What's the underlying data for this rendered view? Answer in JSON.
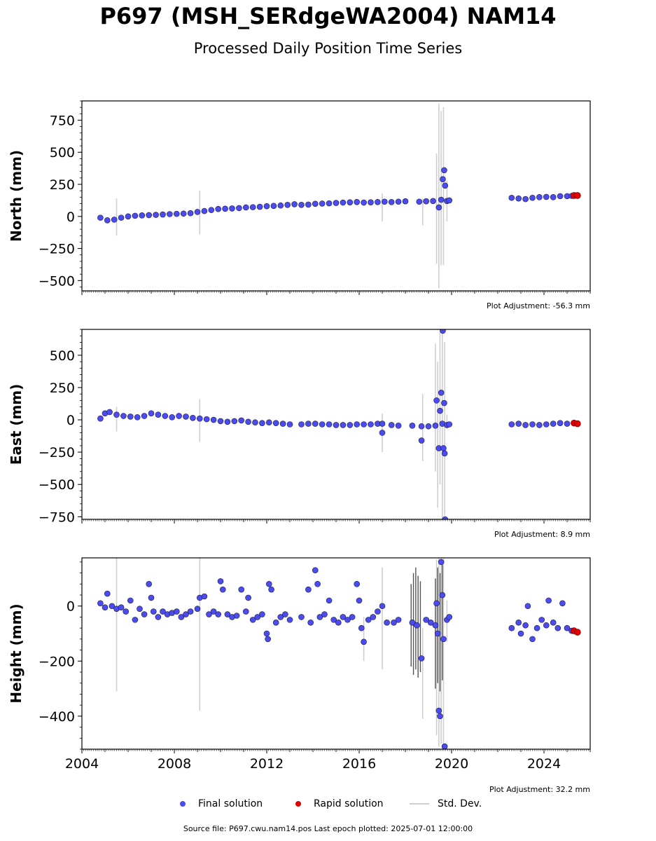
{
  "title": "P697 (MSH_SERdgeWA2004) NAM14",
  "subtitle": "Processed Daily Position Time Series",
  "legend": {
    "final": "Final solution",
    "rapid": "Rapid solution",
    "std": "Std. Dev."
  },
  "footer": "Source file: P697.cwu.nam14.pos  Last epoch plotted: 2025-07-01 12:00:00",
  "colors": {
    "final_fill": "#4b4bf0",
    "final_edge": "#1a1a40",
    "rapid_fill": "#e00000",
    "stddev": "#cfcfcf",
    "stddev_dark": "#555555"
  },
  "chart_data": [
    {
      "type": "scatter",
      "ylabel": "North (mm)",
      "adjustment": "Plot Adjustment: -56.3 mm",
      "xlim": [
        2004.0,
        2026.0
      ],
      "ylim": [
        -580,
        900
      ],
      "yticks": [
        -500,
        -250,
        0,
        250,
        500,
        750
      ],
      "ytick_labels": [
        "−500",
        "−250",
        "0",
        "250",
        "500",
        "750"
      ],
      "xticks": [
        2004,
        2008,
        2012,
        2016,
        2020,
        2024
      ],
      "xtick_labels": [],
      "final": [
        [
          2004.8,
          -10
        ],
        [
          2005.1,
          -30
        ],
        [
          2005.4,
          -25
        ],
        [
          2005.7,
          -10
        ],
        [
          2006.0,
          0
        ],
        [
          2006.3,
          5
        ],
        [
          2006.6,
          8
        ],
        [
          2006.9,
          10
        ],
        [
          2007.2,
          12
        ],
        [
          2007.5,
          15
        ],
        [
          2007.8,
          18
        ],
        [
          2008.1,
          20
        ],
        [
          2008.4,
          22
        ],
        [
          2008.7,
          25
        ],
        [
          2009.0,
          35
        ],
        [
          2009.3,
          42
        ],
        [
          2009.6,
          50
        ],
        [
          2009.9,
          58
        ],
        [
          2010.2,
          60
        ],
        [
          2010.5,
          62
        ],
        [
          2010.8,
          65
        ],
        [
          2011.1,
          70
        ],
        [
          2011.4,
          72
        ],
        [
          2011.7,
          75
        ],
        [
          2012.0,
          80
        ],
        [
          2012.3,
          82
        ],
        [
          2012.6,
          85
        ],
        [
          2012.9,
          90
        ],
        [
          2013.2,
          95
        ],
        [
          2013.5,
          90
        ],
        [
          2013.8,
          92
        ],
        [
          2014.1,
          98
        ],
        [
          2014.4,
          100
        ],
        [
          2014.7,
          102
        ],
        [
          2015.0,
          105
        ],
        [
          2015.3,
          108
        ],
        [
          2015.6,
          110
        ],
        [
          2015.9,
          112
        ],
        [
          2016.2,
          108
        ],
        [
          2016.5,
          110
        ],
        [
          2016.8,
          112
        ],
        [
          2017.1,
          115
        ],
        [
          2017.4,
          112
        ],
        [
          2017.7,
          115
        ],
        [
          2018.0,
          118
        ],
        [
          2018.6,
          115
        ],
        [
          2018.9,
          118
        ],
        [
          2019.2,
          120
        ],
        [
          2019.45,
          70
        ],
        [
          2019.55,
          130
        ],
        [
          2019.62,
          290
        ],
        [
          2019.68,
          360
        ],
        [
          2019.72,
          240
        ],
        [
          2019.8,
          120
        ],
        [
          2019.9,
          125
        ],
        [
          2022.6,
          145
        ],
        [
          2022.9,
          140
        ],
        [
          2023.2,
          135
        ],
        [
          2023.5,
          145
        ],
        [
          2023.8,
          150
        ],
        [
          2024.1,
          152
        ],
        [
          2024.4,
          150
        ],
        [
          2024.7,
          158
        ],
        [
          2025.0,
          158
        ],
        [
          2025.2,
          160
        ]
      ],
      "rapid": [
        [
          2025.3,
          163
        ],
        [
          2025.45,
          163
        ]
      ],
      "stddev": [
        [
          2005.5,
          -150,
          140
        ],
        [
          2009.1,
          -140,
          200
        ],
        [
          2017.0,
          -40,
          180
        ],
        [
          2018.75,
          -70,
          140
        ],
        [
          2019.35,
          -370,
          490
        ],
        [
          2019.45,
          -560,
          880
        ],
        [
          2019.55,
          -380,
          820
        ],
        [
          2019.65,
          -380,
          850
        ],
        [
          2019.8,
          -40,
          280
        ]
      ],
      "stddev_dark": []
    },
    {
      "type": "scatter",
      "ylabel": "East (mm)",
      "adjustment": "Plot Adjustment: 8.9 mm",
      "xlim": [
        2004.0,
        2026.0
      ],
      "ylim": [
        -770,
        700
      ],
      "yticks": [
        -750,
        -500,
        -250,
        0,
        250,
        500
      ],
      "ytick_labels": [
        "−750",
        "−500",
        "−250",
        "0",
        "250",
        "500"
      ],
      "xticks": [
        2004,
        2008,
        2012,
        2016,
        2020,
        2024
      ],
      "xtick_labels": [],
      "final": [
        [
          2004.8,
          10
        ],
        [
          2005.0,
          50
        ],
        [
          2005.2,
          60
        ],
        [
          2005.5,
          40
        ],
        [
          2005.8,
          30
        ],
        [
          2006.1,
          25
        ],
        [
          2006.4,
          20
        ],
        [
          2006.7,
          30
        ],
        [
          2007.0,
          50
        ],
        [
          2007.3,
          40
        ],
        [
          2007.6,
          30
        ],
        [
          2007.9,
          20
        ],
        [
          2008.2,
          30
        ],
        [
          2008.5,
          25
        ],
        [
          2008.8,
          15
        ],
        [
          2009.1,
          10
        ],
        [
          2009.4,
          5
        ],
        [
          2009.7,
          0
        ],
        [
          2010.0,
          -10
        ],
        [
          2010.3,
          -15
        ],
        [
          2010.6,
          -10
        ],
        [
          2010.9,
          -5
        ],
        [
          2011.2,
          -15
        ],
        [
          2011.5,
          -20
        ],
        [
          2011.8,
          -25
        ],
        [
          2012.1,
          -20
        ],
        [
          2012.4,
          -25
        ],
        [
          2012.7,
          -30
        ],
        [
          2013.0,
          -35
        ],
        [
          2013.5,
          -35
        ],
        [
          2013.8,
          -30
        ],
        [
          2014.1,
          -30
        ],
        [
          2014.4,
          -35
        ],
        [
          2014.7,
          -35
        ],
        [
          2015.0,
          -40
        ],
        [
          2015.3,
          -40
        ],
        [
          2015.6,
          -40
        ],
        [
          2015.9,
          -35
        ],
        [
          2016.2,
          -35
        ],
        [
          2016.5,
          -35
        ],
        [
          2016.8,
          -30
        ],
        [
          2017.0,
          -30
        ],
        [
          2017.0,
          -100
        ],
        [
          2017.4,
          -40
        ],
        [
          2017.7,
          -45
        ],
        [
          2018.3,
          -45
        ],
        [
          2018.7,
          -50
        ],
        [
          2018.7,
          -160
        ],
        [
          2019.0,
          -50
        ],
        [
          2019.3,
          -45
        ],
        [
          2019.35,
          150
        ],
        [
          2019.45,
          -220
        ],
        [
          2019.5,
          70
        ],
        [
          2019.55,
          210
        ],
        [
          2019.6,
          -30
        ],
        [
          2019.62,
          690
        ],
        [
          2019.65,
          -220
        ],
        [
          2019.68,
          130
        ],
        [
          2019.7,
          -260
        ],
        [
          2019.72,
          -770
        ],
        [
          2019.8,
          -40
        ],
        [
          2019.9,
          -35
        ],
        [
          2022.6,
          -35
        ],
        [
          2022.9,
          -30
        ],
        [
          2023.2,
          -40
        ],
        [
          2023.5,
          -35
        ],
        [
          2023.8,
          -40
        ],
        [
          2024.1,
          -35
        ],
        [
          2024.4,
          -30
        ],
        [
          2024.7,
          -25
        ],
        [
          2025.0,
          -30
        ]
      ],
      "rapid": [
        [
          2025.3,
          -25
        ],
        [
          2025.45,
          -30
        ]
      ],
      "stddev": [
        [
          2005.5,
          -90,
          100
        ],
        [
          2009.1,
          -170,
          160
        ],
        [
          2017.0,
          -250,
          50
        ],
        [
          2018.75,
          -320,
          200
        ],
        [
          2019.3,
          -400,
          590
        ],
        [
          2019.4,
          -680,
          450
        ],
        [
          2019.5,
          -500,
          680
        ],
        [
          2019.6,
          -770,
          700
        ],
        [
          2019.7,
          -740,
          600
        ],
        [
          2019.8,
          -70,
          40
        ]
      ],
      "stddev_dark": []
    },
    {
      "type": "scatter",
      "ylabel": "Height (mm)",
      "adjustment": "Plot Adjustment: 32.2 mm",
      "xlim": [
        2004.0,
        2026.0
      ],
      "ylim": [
        -520,
        175
      ],
      "yticks": [
        -400,
        -200,
        0
      ],
      "ytick_labels": [
        "−400",
        "−200",
        "0"
      ],
      "xticks": [
        2004,
        2008,
        2012,
        2016,
        2020,
        2024
      ],
      "xtick_labels": [
        "2004",
        "2008",
        "2012",
        "2016",
        "2020",
        "2024"
      ],
      "final": [
        [
          2004.8,
          10
        ],
        [
          2005.0,
          -5
        ],
        [
          2005.1,
          45
        ],
        [
          2005.3,
          0
        ],
        [
          2005.5,
          -10
        ],
        [
          2005.7,
          -5
        ],
        [
          2005.9,
          -20
        ],
        [
          2006.1,
          20
        ],
        [
          2006.3,
          -50
        ],
        [
          2006.5,
          -10
        ],
        [
          2006.7,
          -30
        ],
        [
          2006.9,
          80
        ],
        [
          2007.0,
          30
        ],
        [
          2007.1,
          -20
        ],
        [
          2007.3,
          -40
        ],
        [
          2007.5,
          -20
        ],
        [
          2007.7,
          -30
        ],
        [
          2007.9,
          -25
        ],
        [
          2008.1,
          -20
        ],
        [
          2008.3,
          -40
        ],
        [
          2008.5,
          -30
        ],
        [
          2008.7,
          -20
        ],
        [
          2009.0,
          -10
        ],
        [
          2009.1,
          30
        ],
        [
          2009.3,
          35
        ],
        [
          2009.5,
          -30
        ],
        [
          2009.7,
          -20
        ],
        [
          2009.9,
          -30
        ],
        [
          2010.0,
          90
        ],
        [
          2010.1,
          60
        ],
        [
          2010.3,
          -30
        ],
        [
          2010.5,
          -40
        ],
        [
          2010.7,
          -35
        ],
        [
          2010.9,
          60
        ],
        [
          2011.1,
          -20
        ],
        [
          2011.2,
          30
        ],
        [
          2011.4,
          -50
        ],
        [
          2011.6,
          -40
        ],
        [
          2011.8,
          -30
        ],
        [
          2012.0,
          -100
        ],
        [
          2012.05,
          -120
        ],
        [
          2012.1,
          80
        ],
        [
          2012.2,
          60
        ],
        [
          2012.4,
          -60
        ],
        [
          2012.6,
          -40
        ],
        [
          2012.8,
          -30
        ],
        [
          2013.0,
          -50
        ],
        [
          2013.5,
          -40
        ],
        [
          2013.8,
          60
        ],
        [
          2013.9,
          -60
        ],
        [
          2014.1,
          130
        ],
        [
          2014.2,
          80
        ],
        [
          2014.3,
          -40
        ],
        [
          2014.5,
          -30
        ],
        [
          2014.7,
          20
        ],
        [
          2014.9,
          -50
        ],
        [
          2015.1,
          -60
        ],
        [
          2015.3,
          -40
        ],
        [
          2015.5,
          -50
        ],
        [
          2015.7,
          -40
        ],
        [
          2015.9,
          80
        ],
        [
          2016.0,
          20
        ],
        [
          2016.1,
          -80
        ],
        [
          2016.2,
          -130
        ],
        [
          2016.4,
          -50
        ],
        [
          2016.6,
          -40
        ],
        [
          2016.8,
          -20
        ],
        [
          2017.0,
          0
        ],
        [
          2017.2,
          -60
        ],
        [
          2017.5,
          -60
        ],
        [
          2017.7,
          -50
        ],
        [
          2018.3,
          -60
        ],
        [
          2018.5,
          -70
        ],
        [
          2018.7,
          -190
        ],
        [
          2018.9,
          -50
        ],
        [
          2019.1,
          -60
        ],
        [
          2019.3,
          -70
        ],
        [
          2019.35,
          10
        ],
        [
          2019.4,
          -100
        ],
        [
          2019.45,
          -380
        ],
        [
          2019.5,
          -400
        ],
        [
          2019.55,
          160
        ],
        [
          2019.6,
          40
        ],
        [
          2019.65,
          -120
        ],
        [
          2019.7,
          -510
        ],
        [
          2019.8,
          -50
        ],
        [
          2019.9,
          -40
        ],
        [
          2022.6,
          -80
        ],
        [
          2022.9,
          -60
        ],
        [
          2023.0,
          -100
        ],
        [
          2023.2,
          -70
        ],
        [
          2023.3,
          0
        ],
        [
          2023.5,
          -120
        ],
        [
          2023.7,
          -80
        ],
        [
          2023.9,
          -50
        ],
        [
          2024.1,
          -70
        ],
        [
          2024.2,
          20
        ],
        [
          2024.4,
          -60
        ],
        [
          2024.6,
          -80
        ],
        [
          2024.8,
          10
        ],
        [
          2025.0,
          -80
        ],
        [
          2025.2,
          -90
        ]
      ],
      "rapid": [
        [
          2025.3,
          -90
        ],
        [
          2025.45,
          -95
        ]
      ],
      "stddev": [
        [
          2005.5,
          -310,
          175
        ],
        [
          2009.1,
          -380,
          175
        ],
        [
          2016.2,
          -200,
          -40
        ],
        [
          2017.0,
          -230,
          140
        ],
        [
          2018.75,
          -410,
          -80
        ],
        [
          2019.35,
          -470,
          170
        ],
        [
          2019.45,
          -510,
          175
        ],
        [
          2019.55,
          -500,
          175
        ],
        [
          2019.65,
          -510,
          175
        ],
        [
          2019.8,
          -130,
          20
        ]
      ],
      "stddev_dark": [
        [
          2018.25,
          -220,
          80
        ],
        [
          2018.35,
          -250,
          120
        ],
        [
          2018.45,
          -230,
          140
        ],
        [
          2018.55,
          -260,
          110
        ],
        [
          2018.65,
          -240,
          90
        ],
        [
          2019.3,
          -300,
          100
        ],
        [
          2019.4,
          -280,
          140
        ],
        [
          2019.5,
          -310,
          120
        ],
        [
          2019.6,
          -270,
          150
        ]
      ]
    }
  ]
}
